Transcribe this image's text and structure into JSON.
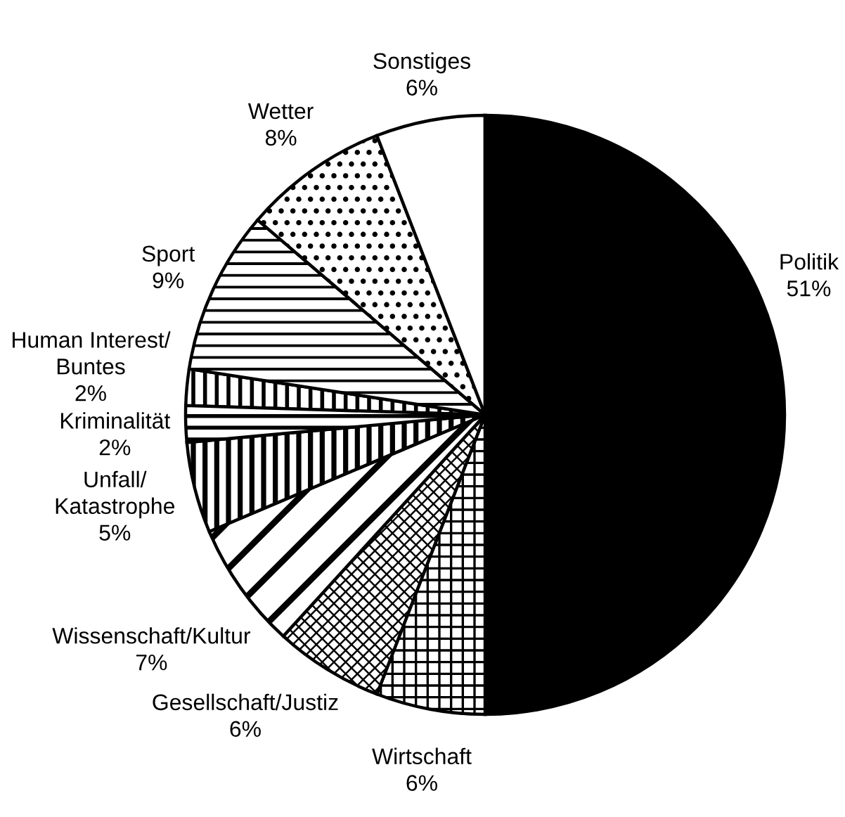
{
  "chart_data": {
    "type": "pie",
    "categories": [
      "Human Interest/\nBuntes",
      "Sport",
      "Wetter",
      "Sonstiges",
      "Politik",
      "Wirtschaft",
      "Gesellschaft/Justiz",
      "Wissenschaft/Kultur",
      "Unfall/\nKatastrophe",
      "Kriminalität"
    ],
    "values": [
      2,
      9,
      8,
      6,
      51,
      6,
      6,
      7,
      5,
      2
    ],
    "value_labels": [
      "2%",
      "9%",
      "8%",
      "6%",
      "51%",
      "6%",
      "6%",
      "7%",
      "5%",
      "2%"
    ],
    "colors": [
      "#000000",
      "#000000",
      "#000000",
      "#ffffff",
      "#000000",
      "#000000",
      "#000000",
      "#000000",
      "#000000",
      "#000000"
    ]
  }
}
